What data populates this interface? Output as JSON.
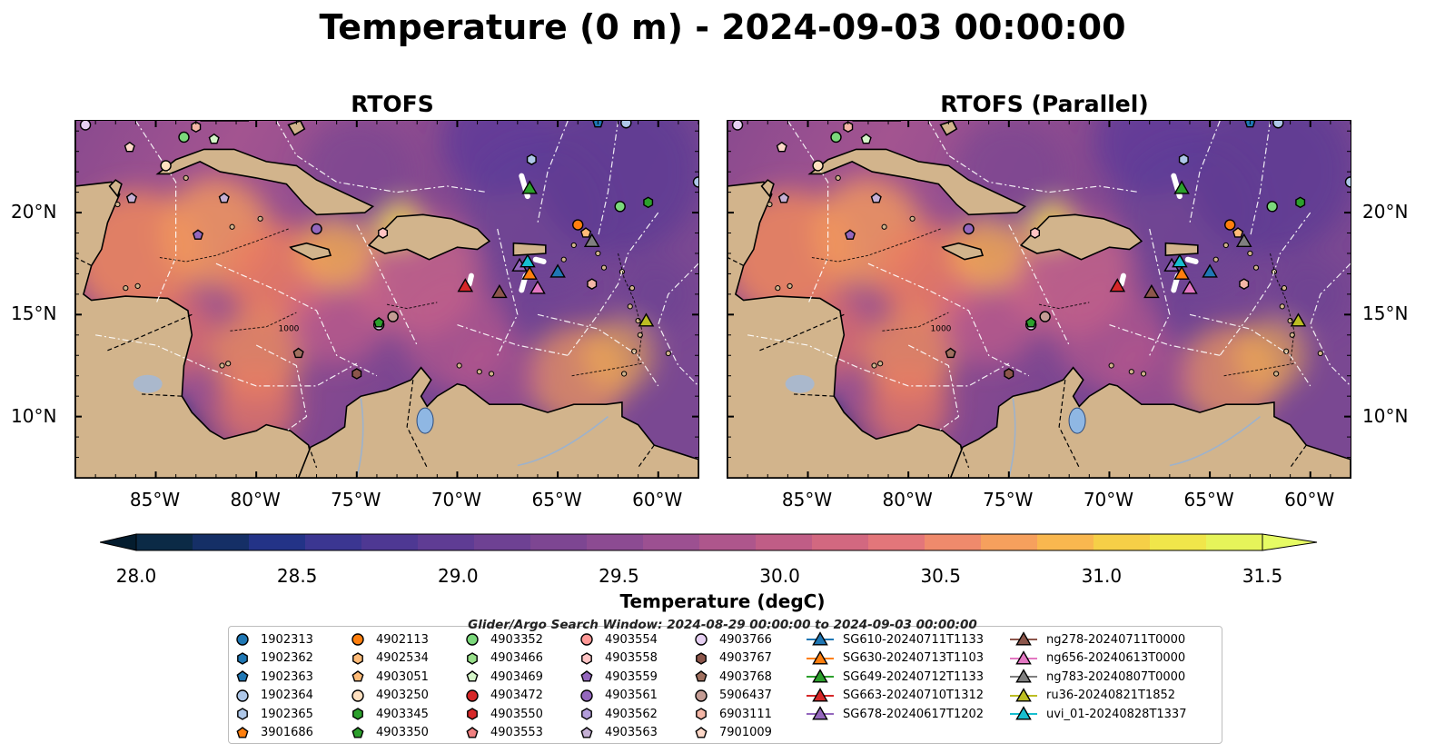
{
  "title": "Temperature (0 m) - 2024-09-03 00:00:00",
  "panels": [
    {
      "title": "RTOFS"
    },
    {
      "title": "RTOFS (Parallel)"
    }
  ],
  "axes": {
    "lon_ticks": [
      "85°W",
      "80°W",
      "75°W",
      "70°W",
      "65°W",
      "60°W"
    ],
    "lat_ticks": [
      "20°N",
      "15°N",
      "10°N"
    ],
    "lon_range": [
      -89,
      -58
    ],
    "lat_range": [
      7,
      24.5
    ]
  },
  "colorbar": {
    "label": "Temperature (degC)",
    "ticks": [
      "28.0",
      "28.5",
      "29.0",
      "29.5",
      "30.0",
      "30.5",
      "31.0",
      "31.5"
    ],
    "range": [
      28.0,
      31.5
    ],
    "extend": "both",
    "colormap": "thermal",
    "colors": [
      "#0b2a46",
      "#152f66",
      "#233387",
      "#3b3691",
      "#4e3893",
      "#5f3c94",
      "#6e4193",
      "#7d4692",
      "#8c4b92",
      "#9c5091",
      "#ae568c",
      "#c05d86",
      "#d26880",
      "#e3767a",
      "#ef8a6c",
      "#f6a05d",
      "#f9b74f",
      "#f6cf47",
      "#f0e64a",
      "#e6f45a"
    ],
    "under_color": "#041c2e",
    "over_color": "#e6fb64"
  },
  "legend": {
    "title": "Glider/Argo Search Window: 2024-08-29 00:00:00 to 2024-09-03 00:00:00",
    "argo": [
      {
        "id": "1902313",
        "marker": "circle",
        "color": "#1f77b4"
      },
      {
        "id": "1902362",
        "marker": "hexagon",
        "color": "#1f77b4"
      },
      {
        "id": "1902363",
        "marker": "pentagon",
        "color": "#1f77b4"
      },
      {
        "id": "1902364",
        "marker": "circle",
        "color": "#aec7e8"
      },
      {
        "id": "1902365",
        "marker": "hexagon",
        "color": "#aec7e8"
      },
      {
        "id": "3901686",
        "marker": "pentagon",
        "color": "#ff7f0e"
      },
      {
        "id": "4902113",
        "marker": "circle",
        "color": "#ff7f0e"
      },
      {
        "id": "4902534",
        "marker": "hexagon",
        "color": "#ffbb78"
      },
      {
        "id": "4903051",
        "marker": "pentagon",
        "color": "#ffbb78"
      },
      {
        "id": "4903250",
        "marker": "circle",
        "color": "#ffe0c0"
      },
      {
        "id": "4903345",
        "marker": "hexagon",
        "color": "#2ca02c"
      },
      {
        "id": "4903350",
        "marker": "pentagon",
        "color": "#2ca02c"
      },
      {
        "id": "4903352",
        "marker": "circle",
        "color": "#7bd87b"
      },
      {
        "id": "4903466",
        "marker": "hexagon",
        "color": "#98df8a"
      },
      {
        "id": "4903469",
        "marker": "pentagon",
        "color": "#d4f5c8"
      },
      {
        "id": "4903472",
        "marker": "circle",
        "color": "#d62728"
      },
      {
        "id": "4903550",
        "marker": "hexagon",
        "color": "#d62728"
      },
      {
        "id": "4903553",
        "marker": "pentagon",
        "color": "#f08080"
      },
      {
        "id": "4903554",
        "marker": "circle",
        "color": "#ff9896"
      },
      {
        "id": "4903558",
        "marker": "hexagon",
        "color": "#ffc4c4"
      },
      {
        "id": "4903559",
        "marker": "pentagon",
        "color": "#9467bd"
      },
      {
        "id": "4903561",
        "marker": "circle",
        "color": "#9467bd"
      },
      {
        "id": "4903562",
        "marker": "hexagon",
        "color": "#b39ddb"
      },
      {
        "id": "4903563",
        "marker": "pentagon",
        "color": "#c5b0d5"
      },
      {
        "id": "4903766",
        "marker": "circle",
        "color": "#e6d0f2"
      },
      {
        "id": "4903767",
        "marker": "hexagon",
        "color": "#8c564b"
      },
      {
        "id": "4903768",
        "marker": "pentagon",
        "color": "#a0705f"
      },
      {
        "id": "5906437",
        "marker": "circle",
        "color": "#c49c94"
      },
      {
        "id": "6903111",
        "marker": "hexagon",
        "color": "#f4b6a6"
      },
      {
        "id": "7901009",
        "marker": "pentagon",
        "color": "#fdd8c8"
      }
    ],
    "gliders": [
      {
        "id": "SG610-20240711T1133",
        "color": "#1f77b4"
      },
      {
        "id": "SG630-20240713T1103",
        "color": "#ff7f0e"
      },
      {
        "id": "SG649-20240712T1133",
        "color": "#2ca02c"
      },
      {
        "id": "SG663-20240710T1312",
        "color": "#d62728"
      },
      {
        "id": "SG678-20240617T1202",
        "color": "#9467bd"
      },
      {
        "id": "ng278-20240711T0000",
        "color": "#8c564b"
      },
      {
        "id": "ng656-20240613T0000",
        "color": "#e377c2"
      },
      {
        "id": "ng783-20240807T0000",
        "color": "#7f7f7f"
      },
      {
        "id": "ru36-20240821T1852",
        "color": "#bcbd22"
      },
      {
        "id": "uvi_01-20240828T1337",
        "color": "#17becf"
      }
    ]
  },
  "map_markers": {
    "argo": [
      {
        "lon": -88.5,
        "lat": 24.3,
        "id": "4903766"
      },
      {
        "lon": -83.0,
        "lat": 24.2,
        "id": "6903111"
      },
      {
        "lon": -86.3,
        "lat": 23.2,
        "id": "7901009"
      },
      {
        "lon": -83.6,
        "lat": 23.7,
        "id": "4903352"
      },
      {
        "lon": -82.1,
        "lat": 23.6,
        "id": "4903469"
      },
      {
        "lon": -84.5,
        "lat": 22.3,
        "id": "4903250"
      },
      {
        "lon": -86.2,
        "lat": 20.7,
        "id": "4903563"
      },
      {
        "lon": -81.6,
        "lat": 20.7,
        "id": "4903563"
      },
      {
        "lon": -82.9,
        "lat": 18.9,
        "id": "4903559"
      },
      {
        "lon": -77.0,
        "lat": 19.2,
        "id": "4903561"
      },
      {
        "lon": -73.7,
        "lat": 19.0,
        "id": "4903558"
      },
      {
        "lon": -66.3,
        "lat": 22.6,
        "id": "1902365"
      },
      {
        "lon": -64.0,
        "lat": 19.4,
        "id": "4902113"
      },
      {
        "lon": -63.6,
        "lat": 19.0,
        "id": "4903051"
      },
      {
        "lon": -61.9,
        "lat": 20.3,
        "id": "4903352"
      },
      {
        "lon": -60.5,
        "lat": 20.5,
        "id": "4903345"
      },
      {
        "lon": -63.3,
        "lat": 16.5,
        "id": "6903111"
      },
      {
        "lon": -63.0,
        "lat": 24.4,
        "id": "1902363"
      },
      {
        "lon": -61.6,
        "lat": 24.4,
        "id": "1902364"
      },
      {
        "lon": -58.0,
        "lat": 21.5,
        "id": "1902364"
      },
      {
        "lon": -73.2,
        "lat": 14.9,
        "id": "5906437"
      },
      {
        "lon": -73.9,
        "lat": 14.5,
        "id": "4903766"
      },
      {
        "lon": -73.9,
        "lat": 14.6,
        "id": "4903350"
      },
      {
        "lon": -77.9,
        "lat": 13.1,
        "id": "4903768"
      },
      {
        "lon": -75.0,
        "lat": 12.1,
        "id": "4903767"
      }
    ],
    "gliders": [
      {
        "lon": -69.6,
        "lat": 16.4,
        "id": "SG663-20240710T1312"
      },
      {
        "lon": -67.9,
        "lat": 16.1,
        "id": "ng278-20240711T0000"
      },
      {
        "lon": -66.4,
        "lat": 17.0,
        "id": "SG630-20240713T1103"
      },
      {
        "lon": -66.9,
        "lat": 17.4,
        "id": "SG678-20240617T1202"
      },
      {
        "lon": -66.5,
        "lat": 17.6,
        "id": "uvi_01-20240828T1337"
      },
      {
        "lon": -66.0,
        "lat": 16.3,
        "id": "ng656-20240613T0000"
      },
      {
        "lon": -65.0,
        "lat": 17.1,
        "id": "SG610-20240711T1133"
      },
      {
        "lon": -66.4,
        "lat": 21.2,
        "id": "SG649-20240712T1133"
      },
      {
        "lon": -63.3,
        "lat": 18.6,
        "id": "ng783-20240807T0000"
      },
      {
        "lon": -60.6,
        "lat": 14.7,
        "id": "ru36-20240821T1852"
      }
    ]
  },
  "depth_contour_label": "1000"
}
